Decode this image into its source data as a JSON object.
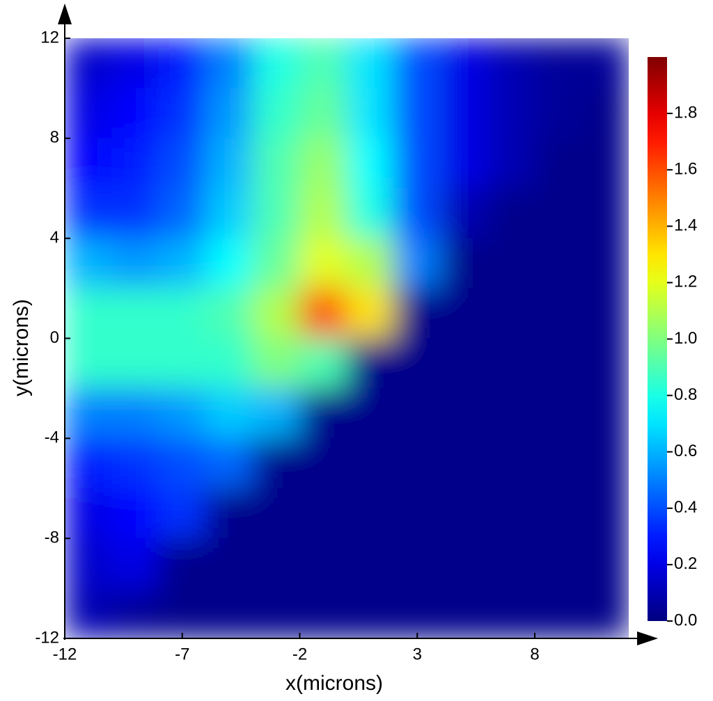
{
  "chart_data": {
    "type": "heatmap",
    "x_label": "x(microns)",
    "y_label": "y(microns)",
    "xlim": [
      -12,
      12
    ],
    "ylim": [
      -12,
      12
    ],
    "xticks": [
      -12,
      -7,
      -2,
      3,
      8
    ],
    "yticks": [
      12,
      8,
      4,
      0,
      -4,
      -8,
      -12
    ],
    "colormap": "jet",
    "clim": [
      0,
      2
    ],
    "cticks": [
      {
        "value": 0,
        "label": "0.0"
      },
      0.2,
      0.4,
      0.6,
      0.8,
      {
        "value": 1,
        "label": "1.0"
      },
      1.2,
      1.4,
      1.6,
      1.8
    ],
    "x": [
      -11,
      -9,
      -7,
      -5,
      -3,
      -1,
      1,
      3,
      5,
      7,
      9,
      11
    ],
    "y": [
      11,
      9,
      7,
      5,
      3,
      1,
      -1,
      -3,
      -5,
      -7,
      -9,
      -11
    ],
    "z": [
      [
        0.15,
        0.2,
        0.3,
        0.5,
        0.8,
        0.9,
        0.7,
        0.4,
        0.2,
        0.1,
        0.05,
        0.05
      ],
      [
        0.2,
        0.25,
        0.35,
        0.55,
        0.85,
        0.95,
        0.7,
        0.4,
        0.2,
        0.1,
        0.05,
        0.02
      ],
      [
        0.25,
        0.3,
        0.4,
        0.6,
        0.9,
        1.05,
        0.75,
        0.4,
        0.2,
        0.1,
        0.02,
        0.02
      ],
      [
        0.35,
        0.35,
        0.45,
        0.65,
        0.9,
        1.1,
        0.8,
        0.4,
        0.1,
        0.02,
        0.02,
        0.02
      ],
      [
        0.6,
        0.55,
        0.6,
        0.75,
        0.95,
        1.2,
        1.1,
        0.5,
        0.02,
        0.02,
        0.02,
        0.02
      ],
      [
        0.85,
        0.85,
        0.85,
        0.9,
        1.1,
        1.6,
        1.3,
        0.02,
        0.02,
        0.02,
        0.02,
        0.02
      ],
      [
        0.85,
        0.85,
        0.85,
        0.85,
        1.0,
        0.9,
        0.02,
        0.02,
        0.02,
        0.02,
        0.02,
        0.02
      ],
      [
        0.5,
        0.5,
        0.55,
        0.65,
        0.6,
        0.02,
        0.02,
        0.02,
        0.02,
        0.02,
        0.02,
        0.02
      ],
      [
        0.3,
        0.35,
        0.4,
        0.45,
        0.02,
        0.02,
        0.02,
        0.02,
        0.02,
        0.02,
        0.02,
        0.02
      ],
      [
        0.2,
        0.25,
        0.35,
        0.02,
        0.02,
        0.02,
        0.02,
        0.02,
        0.02,
        0.02,
        0.02,
        0.02
      ],
      [
        0.15,
        0.2,
        0.02,
        0.02,
        0.02,
        0.02,
        0.02,
        0.02,
        0.02,
        0.02,
        0.02,
        0.02
      ],
      [
        0.1,
        0.05,
        0.02,
        0.02,
        0.02,
        0.02,
        0.02,
        0.02,
        0.02,
        0.02,
        0.02,
        0.02
      ]
    ]
  }
}
